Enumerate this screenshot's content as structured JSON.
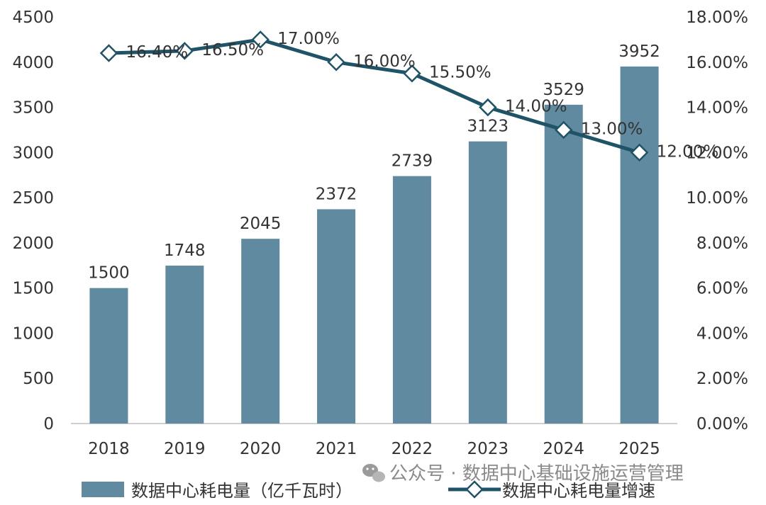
{
  "chart_data": {
    "type": "bar",
    "categories": [
      "2018",
      "2019",
      "2020",
      "2021",
      "2022",
      "2023",
      "2024",
      "2025"
    ],
    "series": [
      {
        "name": "数据中心耗电量（亿千瓦时）",
        "type": "bar",
        "axis": "left",
        "color": "#5f8aa0",
        "values": [
          1500,
          1748,
          2045,
          2372,
          2739,
          3123,
          3529,
          3952
        ],
        "labels": [
          "1500",
          "1748",
          "2045",
          "2372",
          "2739",
          "3123",
          "3529",
          "3952"
        ]
      },
      {
        "name": "数据中心耗电量增速",
        "type": "line",
        "axis": "right",
        "color": "#1f5468",
        "values": [
          16.4,
          16.5,
          17.0,
          16.0,
          15.5,
          14.0,
          13.0,
          12.0
        ],
        "labels": [
          "16.40%",
          "16.50%",
          "17.00%",
          "16.00%",
          "15.50%",
          "14.00%",
          "13.00%",
          "12.00%"
        ]
      }
    ],
    "y_left": {
      "min": 0,
      "max": 4500,
      "ticks": [
        "0",
        "500",
        "1000",
        "1500",
        "2000",
        "2500",
        "3000",
        "3500",
        "4000",
        "4500"
      ]
    },
    "y_right": {
      "min": 0,
      "max": 18,
      "ticks": [
        "0.00%",
        "2.00%",
        "4.00%",
        "6.00%",
        "8.00%",
        "10.00%",
        "12.00%",
        "14.00%",
        "16.00%",
        "18.00%"
      ]
    },
    "grid": false,
    "legend_position": "bottom-left"
  },
  "watermark": {
    "icon": "wechat-icon",
    "text": "公众号 · 数据中心基础设施运营管理"
  }
}
